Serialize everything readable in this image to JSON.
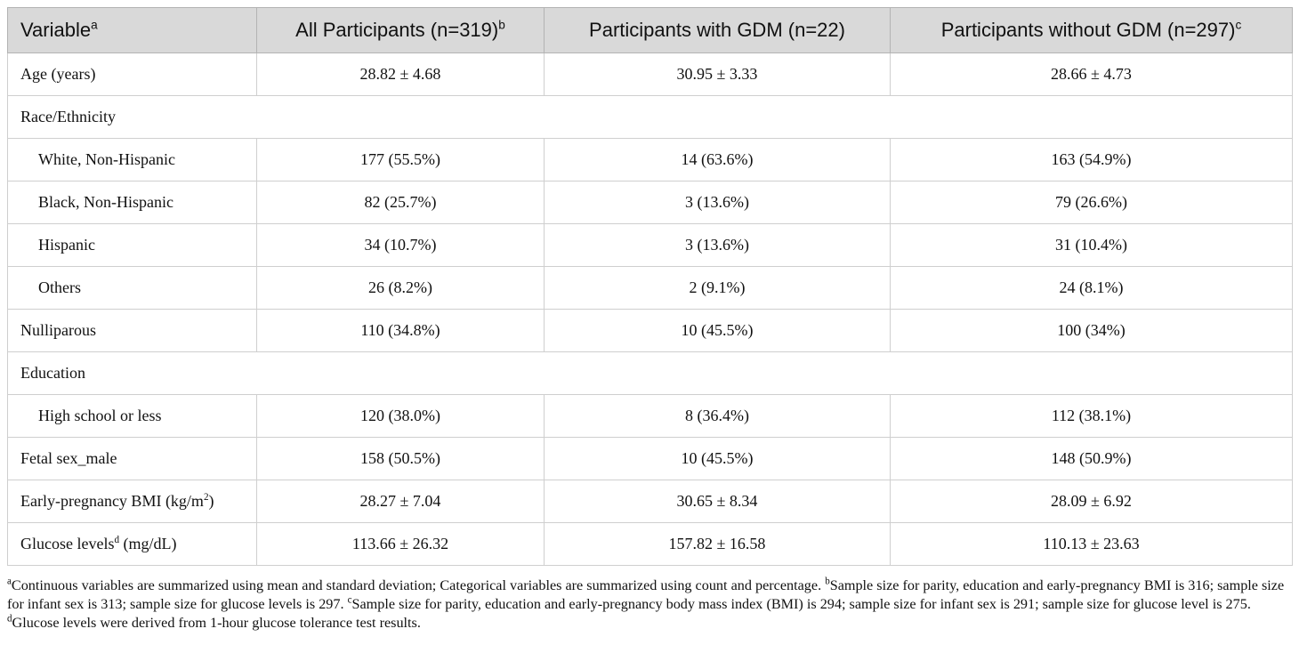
{
  "table": {
    "headers": [
      {
        "text": "Variable",
        "sup": "a"
      },
      {
        "text": "All Participants (n=319)",
        "sup": "b"
      },
      {
        "text": "Participants with GDM (n=22)",
        "sup": ""
      },
      {
        "text": "Participants without GDM (n=297)",
        "sup": "c"
      }
    ],
    "rows": [
      {
        "label": "Age (years)",
        "all": "28.82 ± 4.68",
        "gdm": "30.95 ± 3.33",
        "no_gdm": "28.66 ± 4.73"
      },
      {
        "label": "Race/Ethnicity"
      },
      {
        "label": "White, Non-Hispanic",
        "all": "177 (55.5%)",
        "gdm": "14 (63.6%)",
        "no_gdm": "163 (54.9%)"
      },
      {
        "label": "Black, Non-Hispanic",
        "all": "82 (25.7%)",
        "gdm": "3 (13.6%)",
        "no_gdm": "79 (26.6%)"
      },
      {
        "label": "Hispanic",
        "all": "34 (10.7%)",
        "gdm": "3 (13.6%)",
        "no_gdm": "31 (10.4%)"
      },
      {
        "label": "Others",
        "all": "26 (8.2%)",
        "gdm": "2 (9.1%)",
        "no_gdm": "24 (8.1%)"
      },
      {
        "label": "Nulliparous",
        "all": "110 (34.8%)",
        "gdm": "10 (45.5%)",
        "no_gdm": "100 (34%)"
      },
      {
        "label": "Education"
      },
      {
        "label": "High school or less",
        "all": "120 (38.0%)",
        "gdm": "8 (36.4%)",
        "no_gdm": "112 (38.1%)"
      },
      {
        "label": "Fetal sex_male",
        "all": "158 (50.5%)",
        "gdm": "10 (45.5%)",
        "no_gdm": "148 (50.9%)"
      },
      {
        "label_pre": "Early-pregnancy BMI (kg/m",
        "label_sup": "2",
        "label_post": ")",
        "all": "28.27 ± 7.04",
        "gdm": "30.65 ± 8.34",
        "no_gdm": "28.09 ± 6.92"
      },
      {
        "label_pre": "Glucose levels",
        "label_sup": "d",
        "label_post": " (mg/dL)",
        "all": "113.66 ± 26.32",
        "gdm": "157.82 ± 16.58",
        "no_gdm": "110.13 ± 23.63"
      }
    ]
  },
  "footnotes": [
    {
      "mark": "a",
      "text": "Continuous variables are summarized using mean and standard deviation; Categorical variables are summarized using count and percentage. "
    },
    {
      "mark": "b",
      "text": "Sample size for parity, education and early-pregnancy BMI is 316; sample size for infant sex is 313; sample size for glucose levels is 297. "
    },
    {
      "mark": "c",
      "text": "Sample size for parity, education and early-pregnancy body mass index (BMI) is 294; sample size for infant sex is 291; sample size for glucose level is 275. "
    },
    {
      "mark": "d",
      "text": "Glucose levels were derived from 1-hour glucose tolerance test results."
    }
  ]
}
